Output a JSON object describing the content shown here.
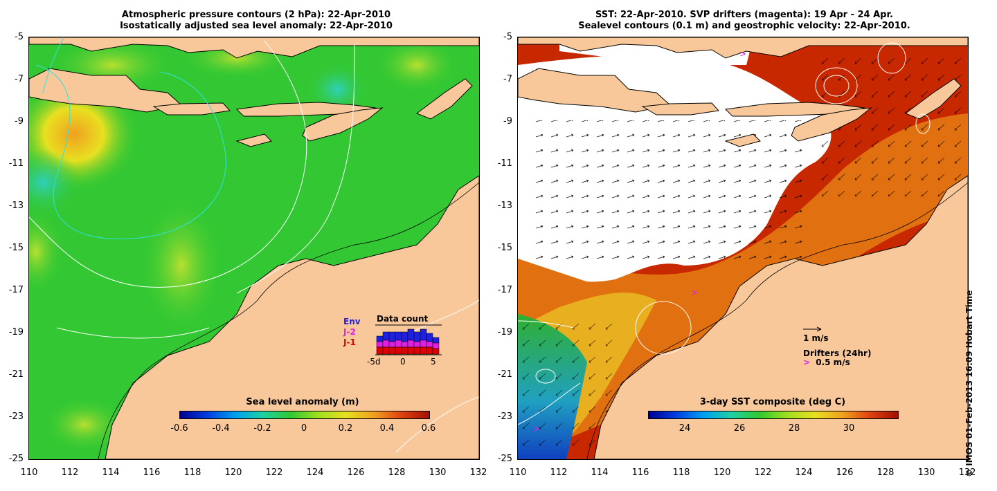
{
  "left_panel": {
    "title_line1": "Atmospheric pressure contours (2 hPa): 22-Apr-2010",
    "title_line2": "Isostatically adjusted sea level anomaly: 22-Apr-2010",
    "colorbar_label": "Sea level anomaly (m)",
    "colorbar_ticks": [
      "-0.6",
      "-0.4",
      "-0.2",
      "0",
      "0.2",
      "0.4",
      "0.6"
    ],
    "colors": {
      "ocean": "#33c833",
      "land": "#f8c89a"
    },
    "data_count": {
      "title": "Data count",
      "legend": [
        {
          "label": "Env",
          "color": "#2020e0"
        },
        {
          "label": "J-2",
          "color": "#e020e0"
        },
        {
          "label": "J-1",
          "color": "#e00000"
        }
      ],
      "x_ticks": [
        "-5d",
        "0",
        "5"
      ]
    }
  },
  "right_panel": {
    "title_line1": "SST: 22-Apr-2010. SVP drifters (magenta): 19 Apr - 24 Apr.",
    "title_line2": "Sealevel contours (0.1 m) and geostrophic velocity: 22-Apr-2010.",
    "colorbar_label": "3-day SST composite (deg C)",
    "colorbar_ticks": [
      "24",
      "26",
      "28",
      "30"
    ],
    "velocity_key": "1 m/s",
    "drifters_label": "Drifters (24hr)",
    "drifters_speed": "0.5 m/s",
    "drifter_symbol": ">",
    "colors": {
      "warm": "#c82800",
      "cloud": "#ffffff",
      "land": "#f8c89a"
    }
  },
  "axes": {
    "y_ticks": [
      "-5",
      "-7",
      "-9",
      "-11",
      "-13",
      "-15",
      "-17",
      "-19",
      "-21",
      "-23",
      "-25"
    ],
    "x_ticks": [
      "110",
      "112",
      "114",
      "116",
      "118",
      "120",
      "122",
      "124",
      "126",
      "128",
      "130",
      "132"
    ]
  },
  "credit": "© IMOS 01-Feb-2013 16:09 Hobart Time"
}
